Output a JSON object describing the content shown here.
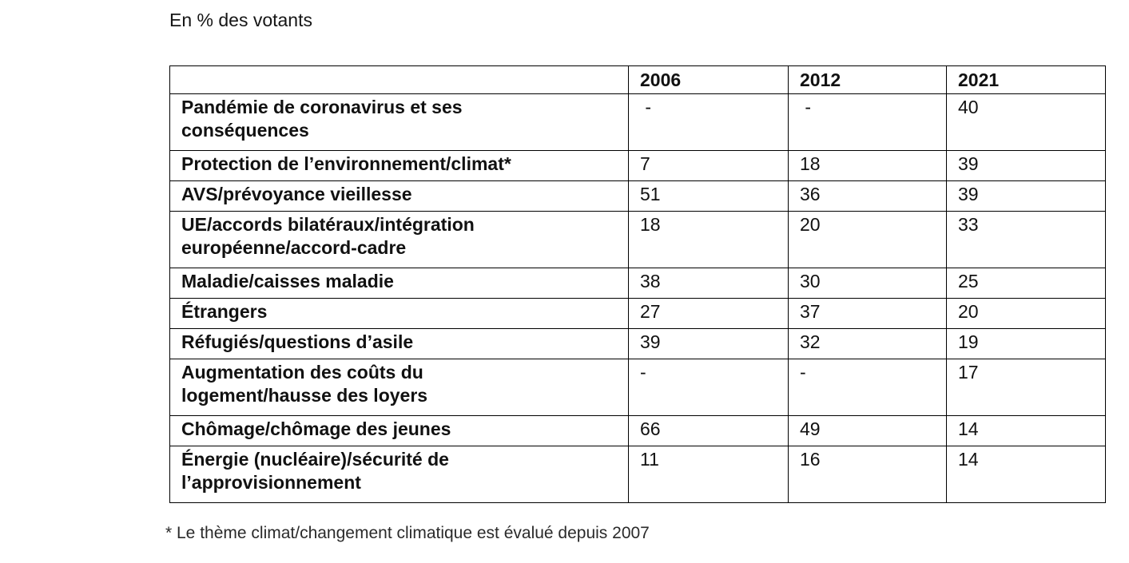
{
  "page": {
    "title": "En % des votants",
    "footnote": "* Le thème climat/changement climatique est évalué depuis 2007"
  },
  "table": {
    "columns": [
      "",
      "2006",
      "2012",
      "2021"
    ],
    "rows": [
      {
        "label": "Pandémie de coronavirus et ses\nconséquences",
        "values": [
          " -",
          " -",
          "40"
        ]
      },
      {
        "label": "Protection de l’environnement/climat*",
        "values": [
          "7",
          "18",
          "39"
        ]
      },
      {
        "label": "AVS/prévoyance vieillesse",
        "values": [
          "51",
          "36",
          "39"
        ]
      },
      {
        "label": "UE/accords bilatéraux/intégration\neuropéenne/accord-cadre",
        "values": [
          "18",
          "20",
          "33"
        ]
      },
      {
        "label": "Maladie/caisses maladie",
        "values": [
          "38",
          "30",
          "25"
        ]
      },
      {
        "label": "Étrangers",
        "values": [
          "27",
          "37",
          "20"
        ]
      },
      {
        "label": "Réfugiés/questions d’asile",
        "values": [
          "39",
          "32",
          "19"
        ]
      },
      {
        "label": "Augmentation des coûts du\nlogement/hausse des loyers",
        "values": [
          "-",
          "-",
          "17"
        ]
      },
      {
        "label": "Chômage/chômage des jeunes",
        "values": [
          "66",
          "49",
          "14"
        ]
      },
      {
        "label": "Énergie (nucléaire)/sécurité de\nl’approvisionnement",
        "values": [
          "11",
          "16",
          "14"
        ]
      }
    ]
  },
  "chart_data": {
    "type": "table",
    "title": "En % des votants",
    "unit": "% des votants",
    "categories": [
      "Pandémie de coronavirus et ses conséquences",
      "Protection de l’environnement/climat*",
      "AVS/prévoyance vieillesse",
      "UE/accords bilatéraux/intégration européenne/accord-cadre",
      "Maladie/caisses maladie",
      "Étrangers",
      "Réfugiés/questions d’asile",
      "Augmentation des coûts du logement/hausse des loyers",
      "Chômage/chômage des jeunes",
      "Énergie (nucléaire)/sécurité de l’approvisionnement"
    ],
    "series": [
      {
        "name": "2006",
        "values": [
          null,
          7,
          51,
          18,
          38,
          27,
          39,
          null,
          66,
          11
        ]
      },
      {
        "name": "2012",
        "values": [
          null,
          18,
          36,
          20,
          30,
          37,
          32,
          null,
          49,
          16
        ]
      },
      {
        "name": "2021",
        "values": [
          40,
          39,
          39,
          33,
          25,
          20,
          19,
          17,
          14,
          14
        ]
      }
    ],
    "footnote": "* Le thème climat/changement climatique est évalué depuis 2007"
  },
  "colors": {
    "text": "#111111",
    "border": "#000000",
    "background": "#ffffff"
  }
}
